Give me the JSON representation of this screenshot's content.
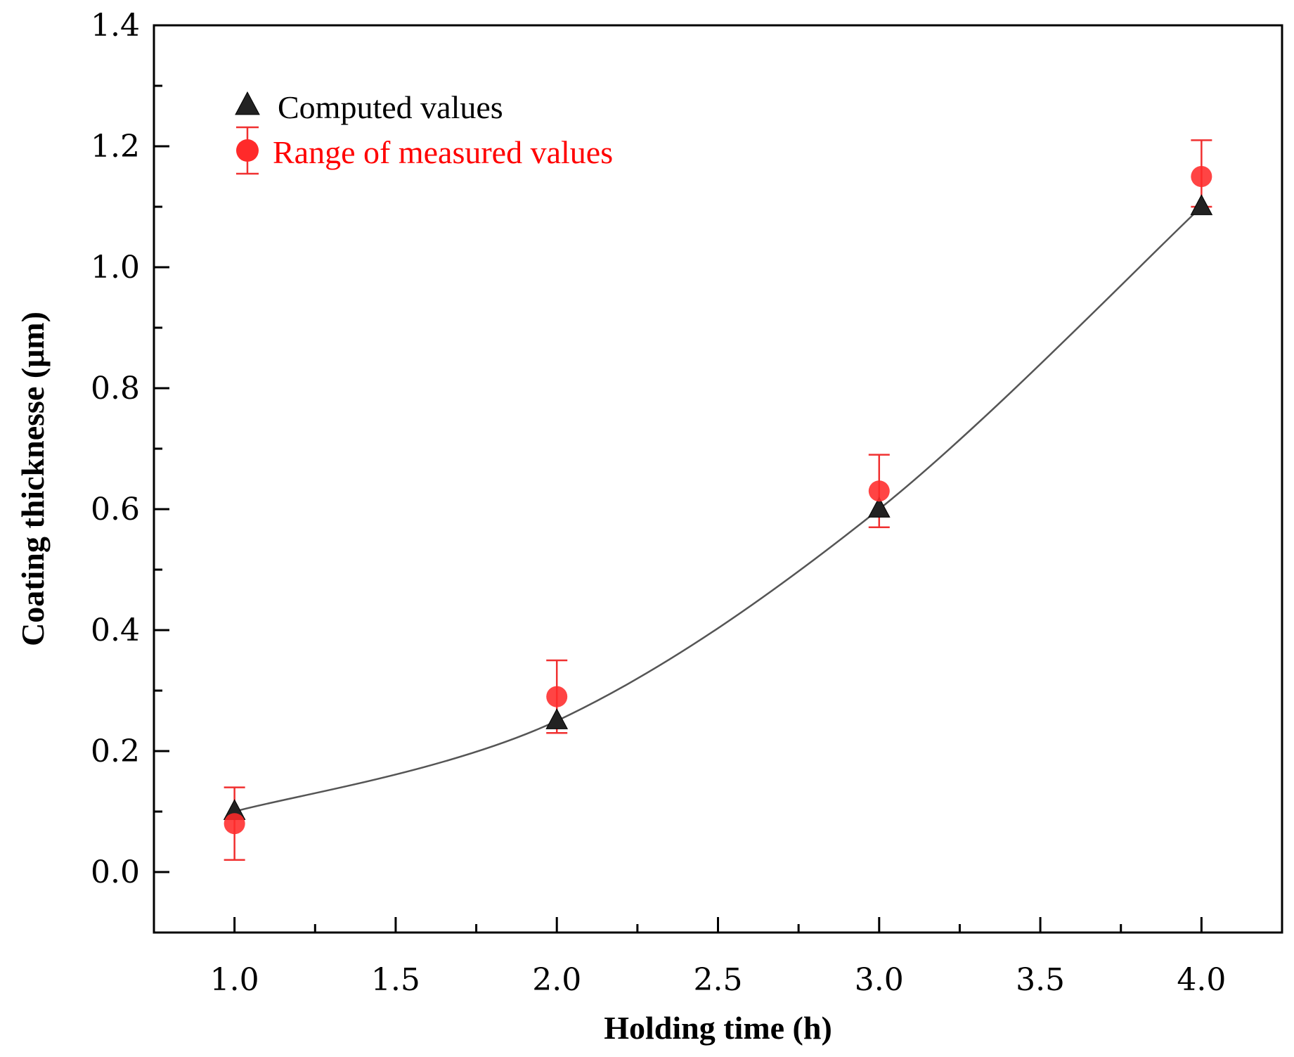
{
  "chart_data": {
    "type": "scatter",
    "title": "",
    "xlabel": "Holding time (h)",
    "ylabel": "Coating thicknesse (μm)",
    "xlim": [
      0.75,
      4.25
    ],
    "ylim": [
      -0.1,
      1.4
    ],
    "x_ticks": [
      1.0,
      1.5,
      2.0,
      2.5,
      3.0,
      3.5,
      4.0
    ],
    "x_tick_labels": [
      "1.0",
      "1.5",
      "2.0",
      "2.5",
      "3.0",
      "3.5",
      "4.0"
    ],
    "y_ticks": [
      0.0,
      0.2,
      0.4,
      0.6,
      0.8,
      1.0,
      1.2,
      1.4
    ],
    "y_tick_labels": [
      "0.0",
      "0.2",
      "0.4",
      "0.6",
      "0.8",
      "1.0",
      "1.2",
      "1.4"
    ],
    "legend_position": "top-left",
    "series": [
      {
        "name": "Computed values",
        "marker": "triangle",
        "color": "#000000",
        "line": true,
        "line_color": "#555555",
        "x": [
          1.0,
          2.0,
          3.0,
          4.0
        ],
        "y": [
          0.1,
          0.25,
          0.6,
          1.1
        ]
      },
      {
        "name": "Range of measured values",
        "marker": "circle",
        "color": "#ff0000",
        "line": false,
        "x": [
          1.0,
          2.0,
          3.0,
          4.0
        ],
        "y": [
          0.08,
          0.29,
          0.63,
          1.15
        ],
        "err_low": [
          0.02,
          0.23,
          0.57,
          1.1
        ],
        "err_high": [
          0.14,
          0.35,
          0.69,
          1.21
        ]
      }
    ]
  }
}
